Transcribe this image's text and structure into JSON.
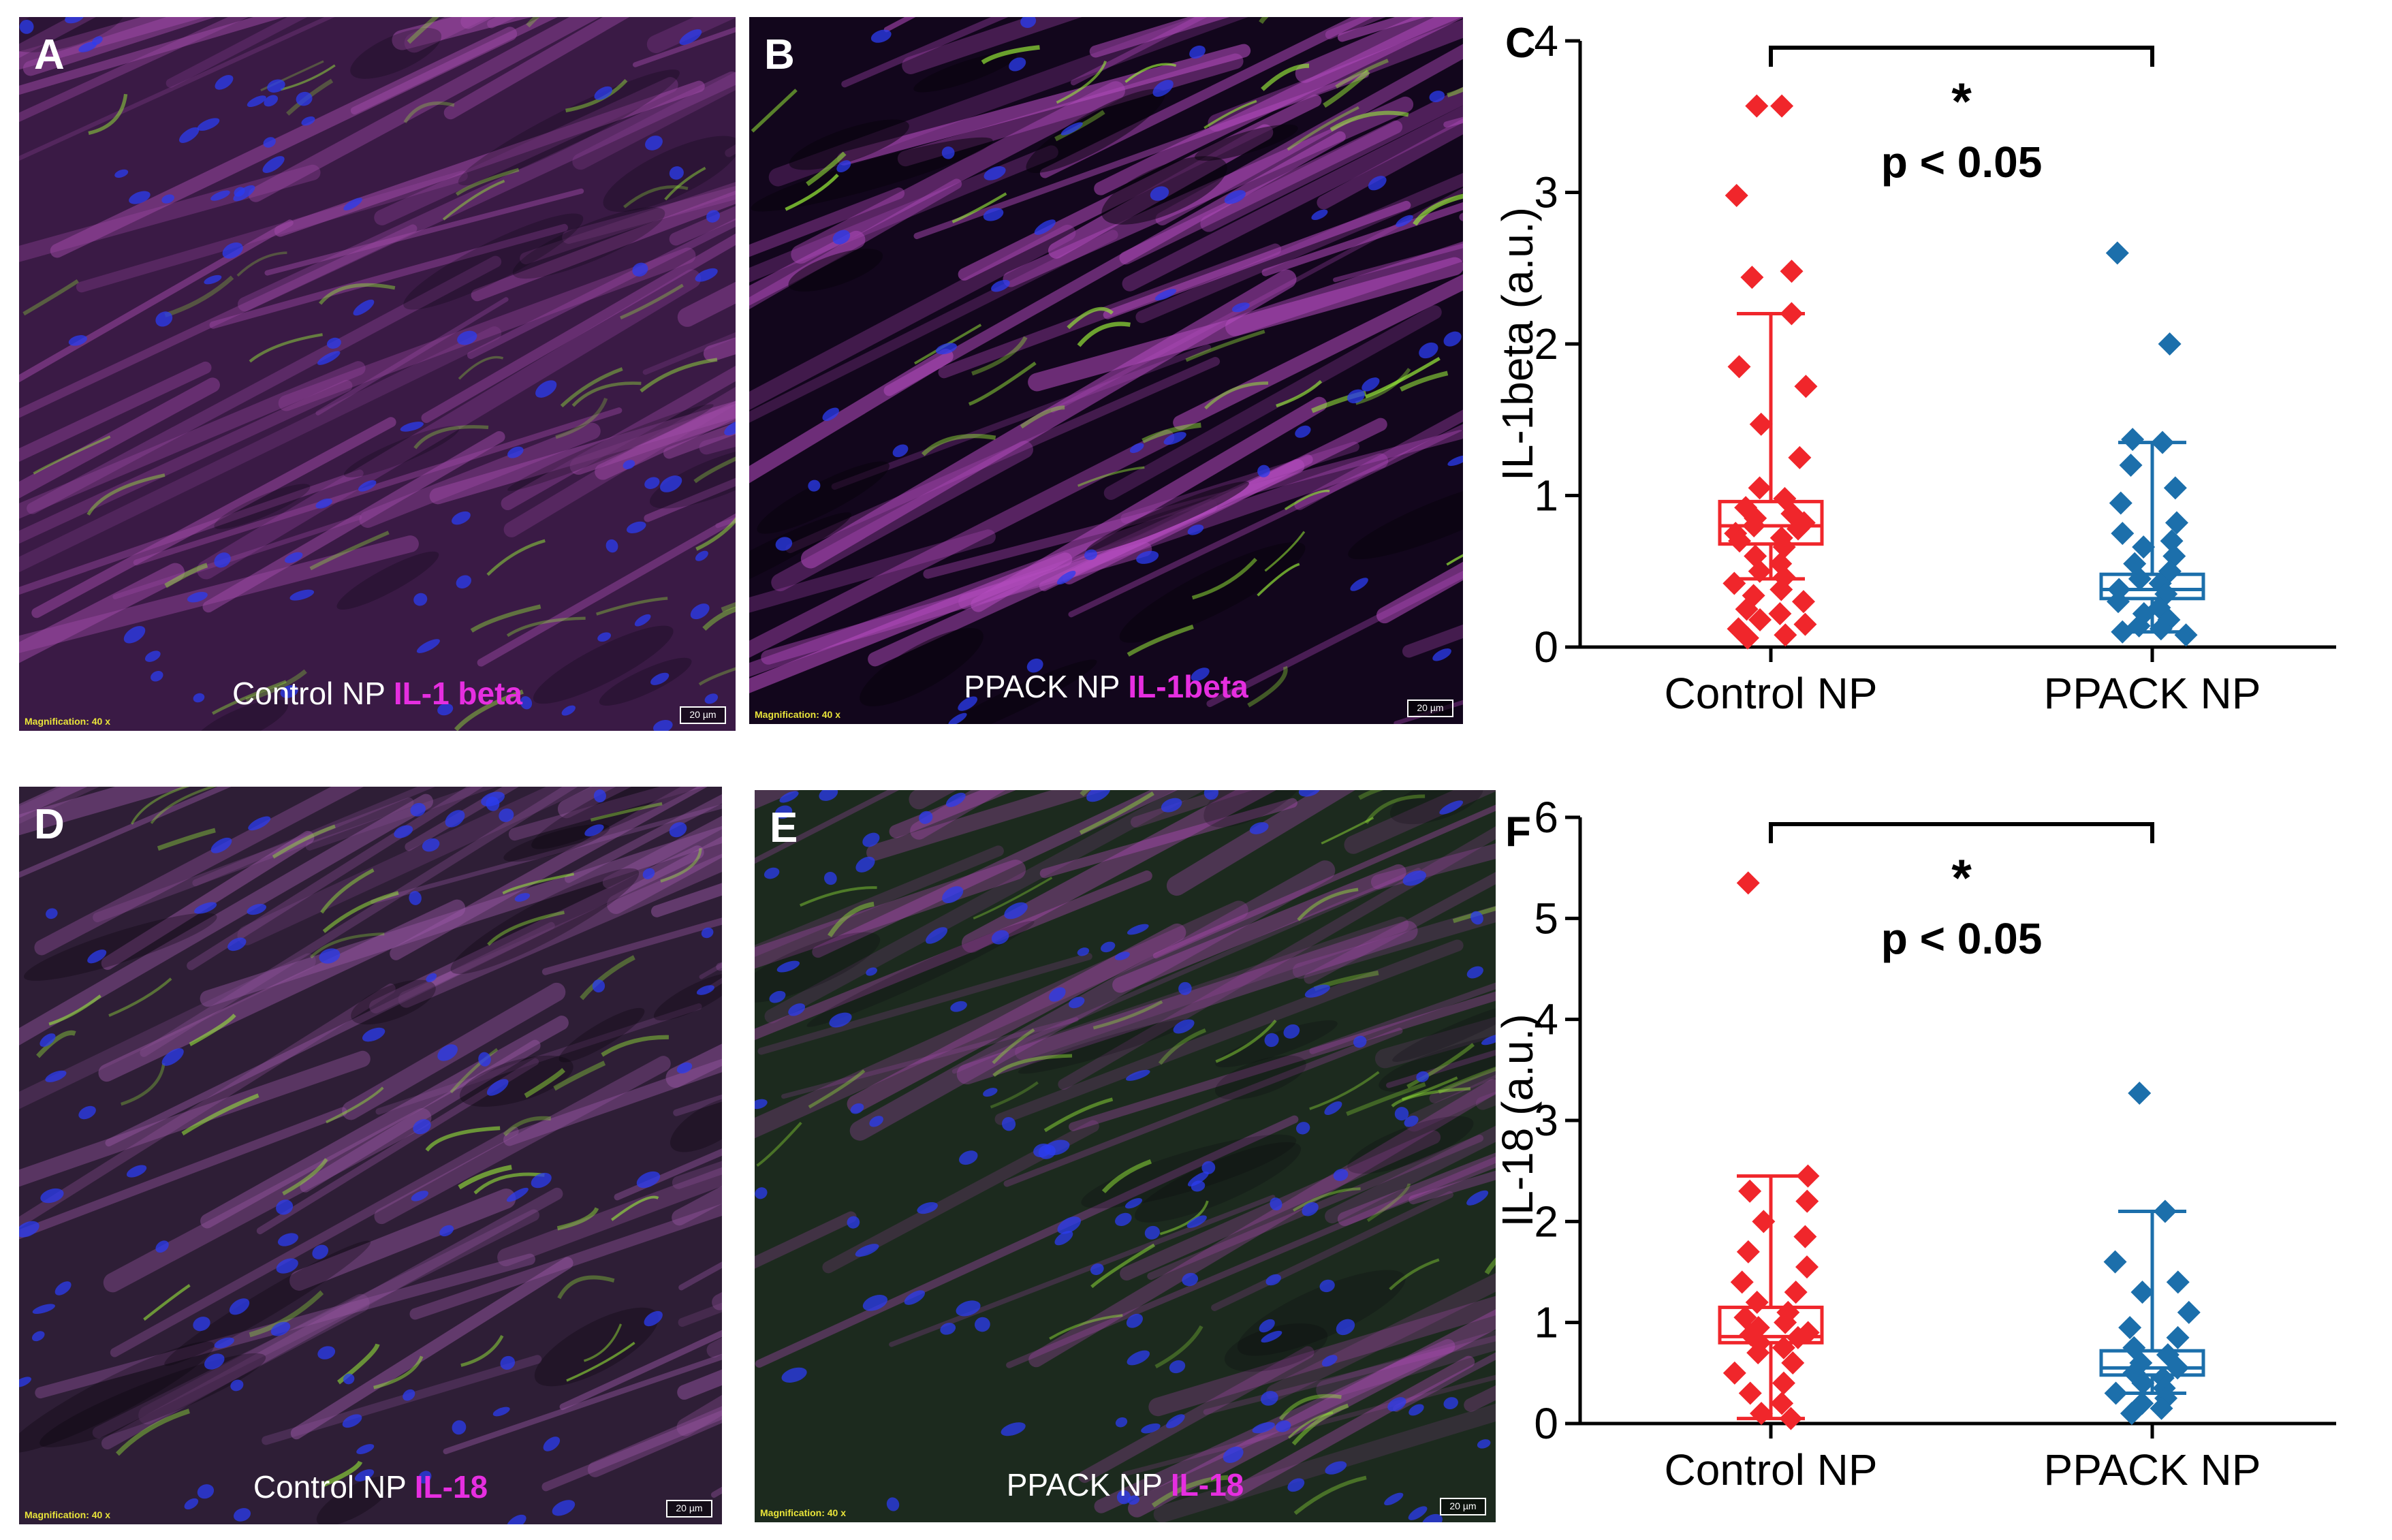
{
  "panels": [
    {
      "letter": "A",
      "condition": "Control NP",
      "marker": "IL-1 beta",
      "magnification": "Magnification:  40 x",
      "scale": "20 µm",
      "stain": "il1-control"
    },
    {
      "letter": "B",
      "condition": "PPACK NP",
      "marker": "IL-1beta",
      "magnification": "Magnification:  40 x",
      "scale": "20 µm",
      "stain": "il1-ppack"
    },
    {
      "letter": "D",
      "condition": "Control NP",
      "marker": "IL-18",
      "magnification": "Magnification:  40 x",
      "scale": "20 µm",
      "stain": "il18-control"
    },
    {
      "letter": "E",
      "condition": "PPACK NP",
      "marker": "IL-18",
      "magnification": "Magnification:  40 x",
      "scale": "20 µm",
      "stain": "il18-ppack"
    }
  ],
  "colors": {
    "control": "#f0262b",
    "ppack": "#1c6fab",
    "magenta": "#e62ee0",
    "nuclei": "#2b3cf0",
    "green": "#9bf23a"
  },
  "chart_data": [
    {
      "letter": "C",
      "type": "box-scatter",
      "title": "",
      "xlabel": "",
      "ylabel": "IL-1beta (a.u.)",
      "ylim": [
        0,
        4
      ],
      "yticks": [
        0,
        1,
        2,
        3,
        4
      ],
      "categories": [
        "Control NP",
        "PPACK NP"
      ],
      "significance": {
        "star": "*",
        "text": "p < 0.05"
      },
      "series": [
        {
          "category": "Control NP",
          "color": "#f0262b",
          "box": {
            "q1": 0.68,
            "median": 0.8,
            "q3": 0.96,
            "whisker_low": 0.45,
            "whisker_high": 2.2
          },
          "points": [
            3.57,
            3.57,
            2.98,
            2.48,
            2.44,
            2.2,
            1.85,
            1.72,
            1.47,
            1.25,
            1.05,
            0.98,
            0.92,
            0.88,
            0.85,
            0.82,
            0.8,
            0.78,
            0.75,
            0.72,
            0.7,
            0.66,
            0.6,
            0.55,
            0.5,
            0.46,
            0.42,
            0.38,
            0.34,
            0.3,
            0.25,
            0.22,
            0.18,
            0.15,
            0.12,
            0.08,
            0.06
          ]
        },
        {
          "category": "PPACK NP",
          "color": "#1c6fab",
          "box": {
            "q1": 0.32,
            "median": 0.38,
            "q3": 0.48,
            "whisker_low": 0.1,
            "whisker_high": 1.35
          },
          "points": [
            2.6,
            2.0,
            1.37,
            1.35,
            1.2,
            1.05,
            0.95,
            0.82,
            0.75,
            0.7,
            0.66,
            0.6,
            0.55,
            0.5,
            0.45,
            0.42,
            0.38,
            0.35,
            0.3,
            0.26,
            0.22,
            0.18,
            0.14,
            0.12,
            0.1,
            0.08
          ]
        }
      ]
    },
    {
      "letter": "F",
      "type": "box-scatter",
      "title": "",
      "xlabel": "",
      "ylabel": "IL-18 (a.u.)",
      "ylim": [
        0,
        6
      ],
      "yticks": [
        0,
        1,
        2,
        3,
        4,
        5,
        6
      ],
      "categories": [
        "Control NP",
        "PPACK NP"
      ],
      "significance": {
        "star": "*",
        "text": "p < 0.05"
      },
      "series": [
        {
          "category": "Control NP",
          "color": "#f0262b",
          "box": {
            "q1": 0.8,
            "median": 0.86,
            "q3": 1.15,
            "whisker_low": 0.05,
            "whisker_high": 2.45
          },
          "points": [
            5.35,
            2.45,
            2.3,
            2.2,
            2.0,
            1.85,
            1.7,
            1.55,
            1.4,
            1.3,
            1.2,
            1.1,
            1.05,
            1.0,
            0.95,
            0.9,
            0.88,
            0.85,
            0.8,
            0.75,
            0.7,
            0.6,
            0.5,
            0.4,
            0.3,
            0.2,
            0.1,
            0.05
          ]
        },
        {
          "category": "PPACK NP",
          "color": "#1c6fab",
          "box": {
            "q1": 0.48,
            "median": 0.55,
            "q3": 0.72,
            "whisker_low": 0.3,
            "whisker_high": 2.1
          },
          "points": [
            3.27,
            2.1,
            1.6,
            1.4,
            1.3,
            1.1,
            0.95,
            0.85,
            0.75,
            0.68,
            0.6,
            0.55,
            0.5,
            0.45,
            0.4,
            0.35,
            0.3,
            0.25,
            0.2,
            0.15,
            0.1
          ]
        }
      ]
    }
  ]
}
